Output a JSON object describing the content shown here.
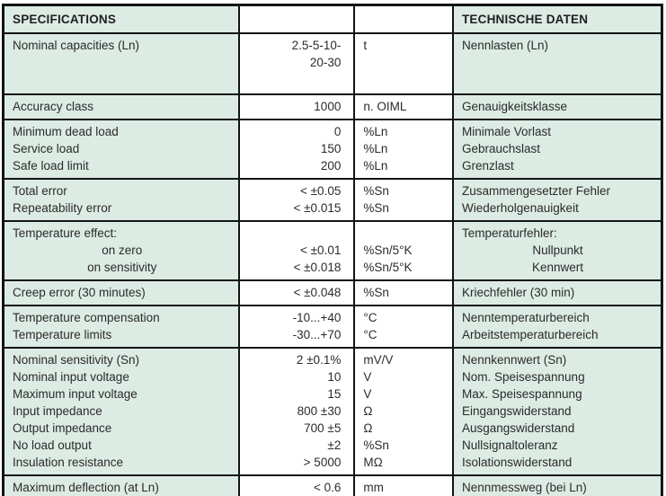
{
  "colors": {
    "cell_tint": "#dcebe3",
    "cell_white": "#ffffff",
    "border": "#141414",
    "text": "#2b2b2b"
  },
  "table": {
    "header": {
      "specifications": "SPECIFICATIONS",
      "value_col": "",
      "unit_col": "",
      "technische_daten": "TECHNISCHE DATEN"
    },
    "rows": [
      {
        "spec": [
          "Nominal capacities (Ln)"
        ],
        "value": [
          "2.5-5-10-",
          "20-30"
        ],
        "unit": [
          "t"
        ],
        "german": [
          "Nennlasten (Ln)"
        ]
      },
      {
        "spec": [
          "Accuracy class"
        ],
        "value": [
          "1000"
        ],
        "unit": [
          "n. OIML"
        ],
        "german": [
          "Genauigkeitsklasse"
        ]
      },
      {
        "spec": [
          "Minimum dead load",
          "Service load",
          "Safe load limit"
        ],
        "value": [
          "0",
          "150",
          "200"
        ],
        "unit": [
          "%Ln",
          "%Ln",
          "%Ln"
        ],
        "german": [
          "Minimale Vorlast",
          "Gebrauchslast",
          "Grenzlast"
        ]
      },
      {
        "spec": [
          "Total error",
          "Repeatability error"
        ],
        "value": [
          "< ±0.05",
          "< ±0.015"
        ],
        "unit": [
          "%Sn",
          "%Sn"
        ],
        "german": [
          "Zusammengesetzter Fehler",
          "Wiederholgenauigkeit"
        ]
      },
      {
        "spec": [
          "Temperature effect:",
          {
            "text": "on zero",
            "align": "center"
          },
          {
            "text": "on sensitivity",
            "align": "center"
          }
        ],
        "value": [
          "",
          "< ±0.01",
          "< ±0.018"
        ],
        "unit": [
          "",
          "%Sn/5°K",
          "%Sn/5°K"
        ],
        "german": [
          "Temperaturfehler:",
          {
            "text": "Nullpunkt",
            "align": "center"
          },
          {
            "text": "Kennwert",
            "align": "center"
          }
        ]
      },
      {
        "spec": [
          "Creep error (30 minutes)"
        ],
        "value": [
          "< ±0.048"
        ],
        "unit": [
          "%Sn"
        ],
        "german": [
          "Kriechfehler (30 min)"
        ]
      },
      {
        "spec": [
          "Temperature compensation",
          "Temperature limits"
        ],
        "value": [
          "-10...+40",
          "-30...+70"
        ],
        "unit": [
          "°C",
          "°C"
        ],
        "german": [
          "Nenntemperaturbereich",
          "Arbeitstemperaturbereich"
        ]
      },
      {
        "spec": [
          "Nominal sensitivity (Sn)",
          "Nominal input voltage",
          "Maximum input voltage",
          "Input impedance",
          "Output impedance",
          "No load output",
          "Insulation resistance"
        ],
        "value": [
          "2 ±0.1%",
          "10",
          "15",
          "800 ±30",
          "700 ±5",
          "±2",
          "> 5000"
        ],
        "unit": [
          "mV/V",
          "V",
          "V",
          "Ω",
          "Ω",
          "%Sn",
          "MΩ"
        ],
        "german": [
          "Nennkennwert (Sn)",
          "Nom. Speisespannung",
          "Max. Speisespannung",
          "Eingangswiderstand",
          "Ausgangswiderstand",
          "Nullsignaltoleranz",
          "Isolationswiderstand"
        ]
      },
      {
        "spec": [
          "Maximum deflection (at Ln)"
        ],
        "value": [
          "< 0.6"
        ],
        "unit": [
          "mm"
        ],
        "german": [
          "Nennmessweg (bei Ln)"
        ]
      }
    ]
  }
}
